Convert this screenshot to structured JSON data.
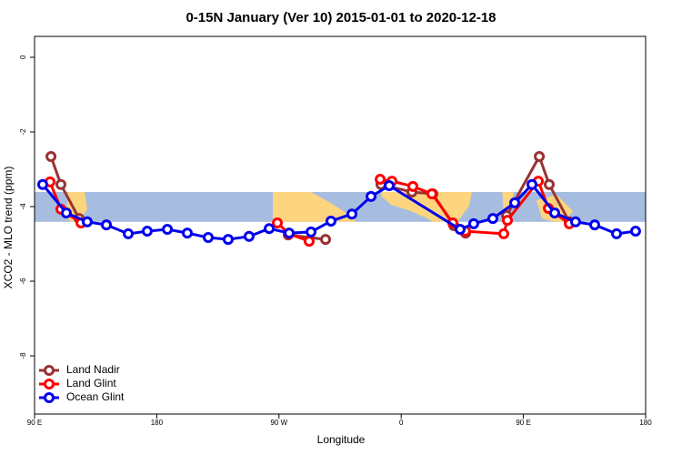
{
  "chart_data": {
    "type": "line",
    "title": "0-15N January (Ver 10)   2015-01-01 to 2020-12-18",
    "x_label": "Longitude",
    "y_label": "XCO2 - MLO trend (ppm)",
    "xlim": [
      90,
      540
    ],
    "xticks": [
      {
        "value": 90,
        "label": "90 E"
      },
      {
        "value": 180,
        "label": "180"
      },
      {
        "value": 270,
        "label": "90 W"
      },
      {
        "value": 360,
        "label": "0"
      },
      {
        "value": 450,
        "label": "90 E"
      },
      {
        "value": 540,
        "label": "180"
      }
    ],
    "ylim": [
      -9.56,
      0.56
    ],
    "yticks": [
      0,
      -2,
      -4,
      -6,
      -8
    ],
    "band": [
      -3.61,
      -4.41
    ],
    "legend": "bottom-left",
    "series": [
      {
        "name": "Land Nadir",
        "color": "#993333",
        "x": [
          102.1,
          109.4,
          122.8,
          null,
          276.8,
          304.3,
          null,
          345.1,
          367.9,
          383.3,
          398.7,
          407.4,
          null,
          437.6,
          461.7,
          469.0,
          483.8
        ],
        "values": [
          -2.66,
          -3.41,
          -4.32,
          null,
          -4.76,
          -4.88,
          null,
          -3.41,
          -3.61,
          -3.66,
          -4.51,
          -4.71,
          null,
          -4.24,
          -2.66,
          -3.41,
          -4.41
        ]
      },
      {
        "name": "Land Glint",
        "color": "#ff0000",
        "x": [
          101.4,
          109.4,
          124.2,
          null,
          268.8,
          277.5,
          292.2,
          null,
          344.5,
          353.2,
          368.6,
          382.6,
          398.0,
          407.4,
          435.5,
          438.2,
          461.0,
          468.4,
          483.8
        ],
        "values": [
          -3.34,
          -4.07,
          -4.44,
          null,
          -4.44,
          -4.73,
          -4.93,
          null,
          -3.27,
          -3.32,
          -3.46,
          -3.66,
          -4.44,
          -4.66,
          -4.73,
          -4.37,
          -3.32,
          -4.05,
          -4.46
        ]
      },
      {
        "name": "Ocean Glint",
        "color": "#0000ee",
        "x": [
          96.0,
          113.4,
          128.8,
          142.9,
          159.0,
          173.0,
          187.8,
          202.5,
          217.9,
          232.6,
          248.0,
          262.8,
          277.5,
          293.6,
          308.3,
          323.7,
          337.8,
          351.2,
          403.4,
          413.4,
          427.5,
          443.6,
          456.3,
          473.0,
          488.4,
          502.5,
          518.6,
          532.6
        ],
        "values": [
          -3.41,
          -4.17,
          -4.41,
          -4.49,
          -4.73,
          -4.66,
          -4.61,
          -4.71,
          -4.83,
          -4.88,
          -4.8,
          -4.59,
          -4.71,
          -4.68,
          -4.39,
          -4.2,
          -3.73,
          -3.44,
          -4.61,
          -4.46,
          -4.32,
          -3.9,
          -3.41,
          -4.17,
          -4.41,
          -4.49,
          -4.73,
          -4.66
        ]
      }
    ]
  }
}
